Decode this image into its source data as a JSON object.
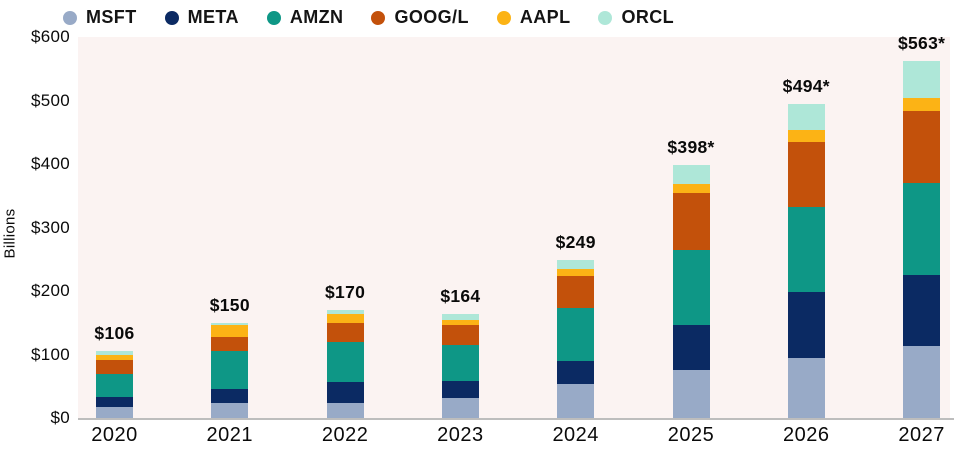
{
  "chart_data": {
    "type": "bar",
    "variant": "stacked-vertical",
    "title": "",
    "xlabel": "",
    "ylabel": "Billions",
    "ylim": [
      0,
      600
    ],
    "grid": false,
    "legend_position": "top-left",
    "plot_bg_color": "#fbf3f2",
    "axis_line_color": "#bdbdbd",
    "y_ticks": [
      {
        "label": "$0",
        "value": 0
      },
      {
        "label": "$100",
        "value": 100
      },
      {
        "label": "$200",
        "value": 200
      },
      {
        "label": "$300",
        "value": 300
      },
      {
        "label": "$400",
        "value": 400
      },
      {
        "label": "$500",
        "value": 500
      },
      {
        "label": "$600",
        "value": 600
      }
    ],
    "categories": [
      "2020",
      "2021",
      "2022",
      "2023",
      "2024",
      "2025",
      "2026",
      "2027"
    ],
    "totals": [
      106,
      150,
      170,
      164,
      249,
      398,
      494,
      563
    ],
    "total_labels": [
      "$106",
      "$150",
      "$170",
      "$164",
      "$249",
      "$398*",
      "$494*",
      "$563*"
    ],
    "series": [
      {
        "name": "MSFT",
        "color": "#98aac7",
        "values": [
          17,
          24,
          24,
          31,
          53,
          75,
          95,
          113
        ]
      },
      {
        "name": "META",
        "color": "#0b2a63",
        "values": [
          16,
          21,
          33,
          27,
          37,
          71,
          104,
          112
        ]
      },
      {
        "name": "AMZN",
        "color": "#0e9786",
        "values": [
          37,
          60,
          63,
          57,
          84,
          119,
          133,
          145
        ]
      },
      {
        "name": "GOOG/L",
        "color": "#c3510b",
        "values": [
          22,
          22,
          30,
          31,
          50,
          89,
          103,
          114
        ]
      },
      {
        "name": "AAPL",
        "color": "#fcb315",
        "values": [
          8,
          20,
          14,
          9,
          11,
          14,
          18,
          20
        ]
      },
      {
        "name": "ORCL",
        "color": "#aee7d8",
        "values": [
          6,
          3,
          6,
          9,
          14,
          30,
          41,
          59
        ]
      }
    ]
  }
}
